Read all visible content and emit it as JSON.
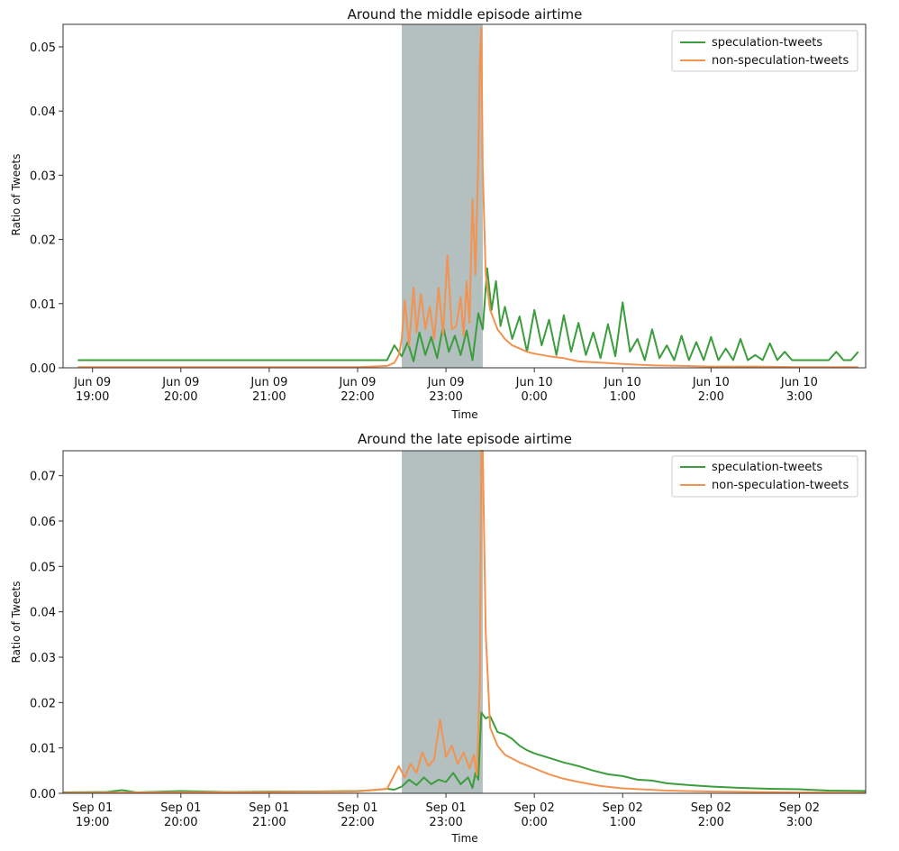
{
  "colors": {
    "speculation": "#3c9d3c",
    "non_speculation": "#f4924f",
    "airtime_band": "#b4bfbf",
    "axis": "#333333"
  },
  "chart_data": [
    {
      "type": "line",
      "title": "Around the middle episode airtime",
      "xlabel": "Time",
      "ylabel": "Ratio of Tweets",
      "xlim": [
        "Jun 09 18:40",
        "Jun 10 03:45"
      ],
      "ylim": [
        0,
        0.0535
      ],
      "yticks": [
        0.0,
        0.01,
        0.02,
        0.03,
        0.04,
        0.05
      ],
      "ytick_labels": [
        "0.00",
        "0.01",
        "0.02",
        "0.03",
        "0.04",
        "0.05"
      ],
      "xticks": [
        {
          "time": "Jun 09 19:00",
          "line1": "Jun 09",
          "line2": "19:00"
        },
        {
          "time": "Jun 09 20:00",
          "line1": "Jun 09",
          "line2": "20:00"
        },
        {
          "time": "Jun 09 21:00",
          "line1": "Jun 09",
          "line2": "21:00"
        },
        {
          "time": "Jun 09 22:00",
          "line1": "Jun 09",
          "line2": "22:00"
        },
        {
          "time": "Jun 09 23:00",
          "line1": "Jun 09",
          "line2": "23:00"
        },
        {
          "time": "Jun 10 00:00",
          "line1": "Jun 10",
          "line2": "0:00"
        },
        {
          "time": "Jun 10 01:00",
          "line1": "Jun 10",
          "line2": "1:00"
        },
        {
          "time": "Jun 10 02:00",
          "line1": "Jun 10",
          "line2": "2:00"
        },
        {
          "time": "Jun 10 03:00",
          "line1": "Jun 10",
          "line2": "3:00"
        }
      ],
      "airtime_band": [
        "Jun 09 22:30",
        "Jun 09 23:25"
      ],
      "legend": "top-right",
      "grid": false,
      "series": [
        {
          "name": "speculation-tweets",
          "color": "#3c9d3c",
          "x": [
            "Jun 09 18:50",
            "Jun 09 20:00",
            "Jun 09 22:15",
            "Jun 09 22:20",
            "Jun 09 22:25",
            "Jun 09 22:30",
            "Jun 09 22:34",
            "Jun 09 22:38",
            "Jun 09 22:42",
            "Jun 09 22:46",
            "Jun 09 22:50",
            "Jun 09 22:54",
            "Jun 09 22:58",
            "Jun 09 23:02",
            "Jun 09 23:06",
            "Jun 09 23:10",
            "Jun 09 23:14",
            "Jun 09 23:18",
            "Jun 09 23:22",
            "Jun 09 23:25",
            "Jun 09 23:28",
            "Jun 09 23:31",
            "Jun 09 23:34",
            "Jun 09 23:37",
            "Jun 09 23:40",
            "Jun 09 23:45",
            "Jun 09 23:50",
            "Jun 09 23:55",
            "Jun 10 00:00",
            "Jun 10 00:05",
            "Jun 10 00:10",
            "Jun 10 00:15",
            "Jun 10 00:20",
            "Jun 10 00:25",
            "Jun 10 00:30",
            "Jun 10 00:35",
            "Jun 10 00:40",
            "Jun 10 00:45",
            "Jun 10 00:50",
            "Jun 10 00:55",
            "Jun 10 01:00",
            "Jun 10 01:05",
            "Jun 10 01:10",
            "Jun 10 01:15",
            "Jun 10 01:20",
            "Jun 10 01:25",
            "Jun 10 01:30",
            "Jun 10 01:35",
            "Jun 10 01:40",
            "Jun 10 01:45",
            "Jun 10 01:50",
            "Jun 10 01:55",
            "Jun 10 02:00",
            "Jun 10 02:05",
            "Jun 10 02:10",
            "Jun 10 02:15",
            "Jun 10 02:20",
            "Jun 10 02:25",
            "Jun 10 02:30",
            "Jun 10 02:35",
            "Jun 10 02:40",
            "Jun 10 02:45",
            "Jun 10 02:50",
            "Jun 10 02:55",
            "Jun 10 03:00",
            "Jun 10 03:05",
            "Jun 10 03:10",
            "Jun 10 03:15",
            "Jun 10 03:20",
            "Jun 10 03:25",
            "Jun 10 03:30",
            "Jun 10 03:35",
            "Jun 10 03:40"
          ],
          "values": [
            0.0012,
            0.0012,
            0.0012,
            0.0012,
            0.0035,
            0.0018,
            0.004,
            0.001,
            0.0055,
            0.002,
            0.0048,
            0.0015,
            0.0065,
            0.0025,
            0.005,
            0.002,
            0.0058,
            0.0012,
            0.0085,
            0.006,
            0.0155,
            0.009,
            0.0135,
            0.0065,
            0.0095,
            0.0045,
            0.008,
            0.0025,
            0.009,
            0.0035,
            0.0075,
            0.002,
            0.0082,
            0.0025,
            0.007,
            0.002,
            0.0055,
            0.0015,
            0.0068,
            0.0018,
            0.0102,
            0.0025,
            0.0045,
            0.0012,
            0.006,
            0.0015,
            0.0035,
            0.0012,
            0.005,
            0.0012,
            0.004,
            0.0012,
            0.0048,
            0.0012,
            0.003,
            0.0012,
            0.0045,
            0.0012,
            0.002,
            0.0012,
            0.0038,
            0.0012,
            0.0025,
            0.0012,
            0.0012,
            0.0012,
            0.0012,
            0.0012,
            0.0012,
            0.0025,
            0.0012,
            0.0012,
            0.0025
          ]
        },
        {
          "name": "non-speculation-tweets",
          "color": "#f4924f",
          "x": [
            "Jun 09 18:50",
            "Jun 09 22:00",
            "Jun 09 22:20",
            "Jun 09 22:25",
            "Jun 09 22:28",
            "Jun 09 22:30",
            "Jun 09 22:32",
            "Jun 09 22:35",
            "Jun 09 22:38",
            "Jun 09 22:40",
            "Jun 09 22:43",
            "Jun 09 22:46",
            "Jun 09 22:49",
            "Jun 09 22:52",
            "Jun 09 22:55",
            "Jun 09 22:58",
            "Jun 09 23:01",
            "Jun 09 23:04",
            "Jun 09 23:07",
            "Jun 09 23:10",
            "Jun 09 23:12",
            "Jun 09 23:14",
            "Jun 09 23:16",
            "Jun 09 23:18",
            "Jun 09 23:20",
            "Jun 09 23:22",
            "Jun 09 23:23",
            "Jun 09 23:24",
            "Jun 09 23:25",
            "Jun 09 23:27",
            "Jun 09 23:30",
            "Jun 09 23:35",
            "Jun 09 23:40",
            "Jun 09 23:45",
            "Jun 09 23:50",
            "Jun 09 23:55",
            "Jun 10 00:00",
            "Jun 10 00:10",
            "Jun 10 00:20",
            "Jun 10 00:30",
            "Jun 10 00:45",
            "Jun 10 01:00",
            "Jun 10 01:20",
            "Jun 10 01:40",
            "Jun 10 02:00",
            "Jun 10 02:30",
            "Jun 10 03:00",
            "Jun 10 03:40"
          ],
          "values": [
            0.0001,
            0.0001,
            0.0003,
            0.0008,
            0.002,
            0.0045,
            0.0105,
            0.0035,
            0.0125,
            0.0055,
            0.0115,
            0.006,
            0.0095,
            0.0045,
            0.0125,
            0.0052,
            0.0175,
            0.006,
            0.0065,
            0.011,
            0.005,
            0.0135,
            0.007,
            0.0262,
            0.0145,
            0.033,
            0.0475,
            0.053,
            0.031,
            0.0145,
            0.009,
            0.006,
            0.0045,
            0.0035,
            0.003,
            0.0025,
            0.0022,
            0.0018,
            0.0015,
            0.001,
            0.0008,
            0.0006,
            0.0004,
            0.0003,
            0.0002,
            0.0002,
            0.0001,
            0.0001
          ]
        }
      ]
    },
    {
      "type": "line",
      "title": "Around the late episode airtime",
      "xlabel": "Time",
      "ylabel": "Ratio of Tweets",
      "xlim": [
        "Sep 01 18:40",
        "Sep 02 03:45"
      ],
      "ylim": [
        0,
        0.0755
      ],
      "yticks": [
        0.0,
        0.01,
        0.02,
        0.03,
        0.04,
        0.05,
        0.06,
        0.07
      ],
      "ytick_labels": [
        "0.00",
        "0.01",
        "0.02",
        "0.03",
        "0.04",
        "0.05",
        "0.06",
        "0.07"
      ],
      "xticks": [
        {
          "time": "Sep 01 19:00",
          "line1": "Sep 01",
          "line2": "19:00"
        },
        {
          "time": "Sep 01 20:00",
          "line1": "Sep 01",
          "line2": "20:00"
        },
        {
          "time": "Sep 01 21:00",
          "line1": "Sep 01",
          "line2": "21:00"
        },
        {
          "time": "Sep 01 22:00",
          "line1": "Sep 01",
          "line2": "22:00"
        },
        {
          "time": "Sep 01 23:00",
          "line1": "Sep 01",
          "line2": "23:00"
        },
        {
          "time": "Sep 02 00:00",
          "line1": "Sep 02",
          "line2": "0:00"
        },
        {
          "time": "Sep 02 01:00",
          "line1": "Sep 02",
          "line2": "1:00"
        },
        {
          "time": "Sep 02 02:00",
          "line1": "Sep 02",
          "line2": "2:00"
        },
        {
          "time": "Sep 02 03:00",
          "line1": "Sep 02",
          "line2": "3:00"
        }
      ],
      "airtime_band": [
        "Sep 01 22:30",
        "Sep 01 23:25"
      ],
      "legend": "top-right",
      "grid": false,
      "series": [
        {
          "name": "speculation-tweets",
          "color": "#3c9d3c",
          "x": [
            "Sep 01 18:40",
            "Sep 01 19:10",
            "Sep 01 19:20",
            "Sep 01 19:30",
            "Sep 01 20:00",
            "Sep 01 20:30",
            "Sep 01 21:00",
            "Sep 01 21:30",
            "Sep 01 22:00",
            "Sep 01 22:10",
            "Sep 01 22:20",
            "Sep 01 22:25",
            "Sep 01 22:30",
            "Sep 01 22:35",
            "Sep 01 22:40",
            "Sep 01 22:45",
            "Sep 01 22:50",
            "Sep 01 22:55",
            "Sep 01 23:00",
            "Sep 01 23:05",
            "Sep 01 23:10",
            "Sep 01 23:15",
            "Sep 01 23:18",
            "Sep 01 23:20",
            "Sep 01 23:22",
            "Sep 01 23:24",
            "Sep 01 23:27",
            "Sep 01 23:30",
            "Sep 01 23:35",
            "Sep 01 23:40",
            "Sep 01 23:45",
            "Sep 01 23:50",
            "Sep 01 23:55",
            "Sep 02 00:00",
            "Sep 02 00:10",
            "Sep 02 00:20",
            "Sep 02 00:30",
            "Sep 02 00:40",
            "Sep 02 00:50",
            "Sep 02 01:00",
            "Sep 02 01:10",
            "Sep 02 01:20",
            "Sep 02 01:30",
            "Sep 02 01:45",
            "Sep 02 02:00",
            "Sep 02 02:20",
            "Sep 02 02:40",
            "Sep 02 03:00",
            "Sep 02 03:20",
            "Sep 02 03:45"
          ],
          "values": [
            0.0002,
            0.0003,
            0.0007,
            0.0002,
            0.0005,
            0.0003,
            0.0004,
            0.0004,
            0.0005,
            0.0007,
            0.001,
            0.0008,
            0.0015,
            0.003,
            0.0018,
            0.0035,
            0.002,
            0.003,
            0.0025,
            0.0045,
            0.002,
            0.0035,
            0.0012,
            0.0045,
            0.003,
            0.0178,
            0.0165,
            0.017,
            0.0135,
            0.013,
            0.012,
            0.0105,
            0.0095,
            0.0088,
            0.0078,
            0.0068,
            0.006,
            0.005,
            0.0042,
            0.0038,
            0.003,
            0.0028,
            0.0022,
            0.0018,
            0.0015,
            0.0012,
            0.001,
            0.0009,
            0.0006,
            0.0005
          ]
        },
        {
          "name": "non-speculation-tweets",
          "color": "#f4924f",
          "x": [
            "Sep 01 18:40",
            "Sep 01 20:00",
            "Sep 01 21:00",
            "Sep 01 22:00",
            "Sep 01 22:20",
            "Sep 01 22:28",
            "Sep 01 22:32",
            "Sep 01 22:36",
            "Sep 01 22:40",
            "Sep 01 22:44",
            "Sep 01 22:48",
            "Sep 01 22:52",
            "Sep 01 22:56",
            "Sep 01 23:00",
            "Sep 01 23:04",
            "Sep 01 23:08",
            "Sep 01 23:12",
            "Sep 01 23:16",
            "Sep 01 23:19",
            "Sep 01 23:21",
            "Sep 01 23:23",
            "Sep 01 23:24",
            "Sep 01 23:25",
            "Sep 01 23:27",
            "Sep 01 23:30",
            "Sep 01 23:35",
            "Sep 01 23:40",
            "Sep 01 23:50",
            "Sep 02 00:00",
            "Sep 02 00:10",
            "Sep 02 00:20",
            "Sep 02 00:30",
            "Sep 02 00:45",
            "Sep 02 01:00",
            "Sep 02 01:30",
            "Sep 02 02:00",
            "Sep 02 03:00",
            "Sep 02 03:45"
          ],
          "values": [
            0.0001,
            0.0002,
            0.0003,
            0.0004,
            0.001,
            0.006,
            0.0035,
            0.0065,
            0.0045,
            0.009,
            0.006,
            0.0075,
            0.0162,
            0.008,
            0.0105,
            0.0065,
            0.009,
            0.0055,
            0.0085,
            0.004,
            0.0245,
            0.0755,
            0.0755,
            0.0355,
            0.0145,
            0.0105,
            0.0085,
            0.0068,
            0.0055,
            0.0042,
            0.0032,
            0.0025,
            0.0016,
            0.0011,
            0.0006,
            0.0004,
            0.0002,
            0.0001
          ]
        }
      ]
    }
  ]
}
